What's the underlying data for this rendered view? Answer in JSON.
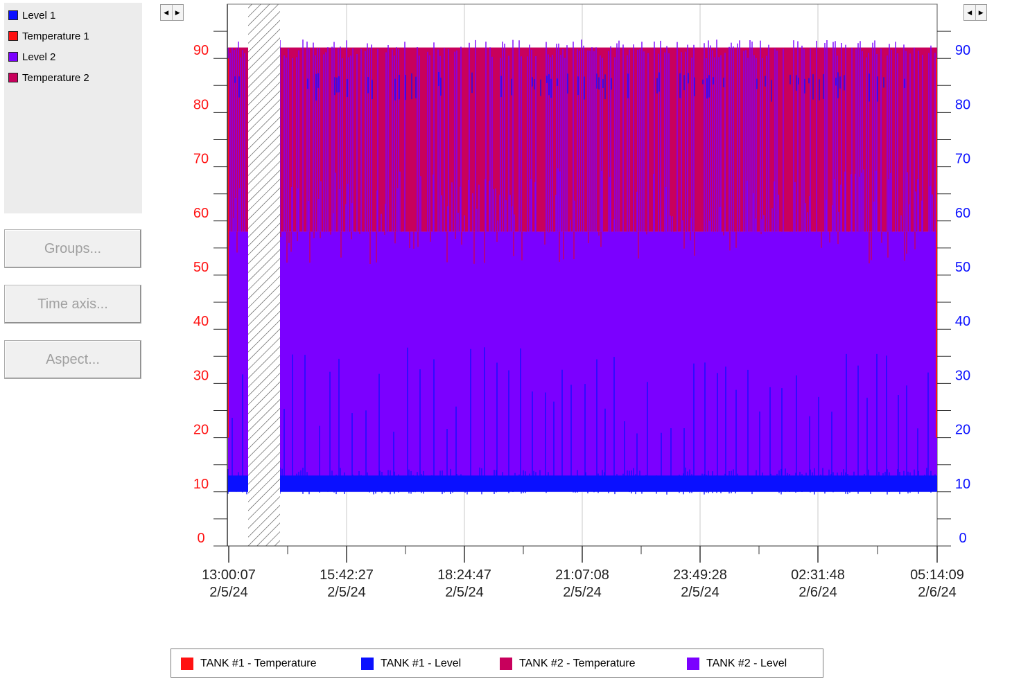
{
  "side_legend": [
    {
      "label": "Level 1",
      "color": "#0a10ff"
    },
    {
      "label": "Temperature 1",
      "color": "#ff1212"
    },
    {
      "label": "Level 2",
      "color": "#7b00ff"
    },
    {
      "label": "Temperature 2",
      "color": "#c8005c"
    }
  ],
  "buttons": {
    "groups": "Groups...",
    "time_axis": "Time axis...",
    "aspect": "Aspect..."
  },
  "scroll_icons": [
    "scroll-left-icon",
    "scroll-right-icon"
  ],
  "bottom_legend": [
    {
      "label": "TANK #1 - Temperature",
      "color": "#ff1212"
    },
    {
      "label": "TANK #1 - Level",
      "color": "#0a10ff"
    },
    {
      "label": "TANK #2 - Temperature",
      "color": "#c8005c"
    },
    {
      "label": "TANK #2 - Level",
      "color": "#7b00ff"
    }
  ],
  "chart_data": {
    "type": "area",
    "title": "",
    "left_axis": {
      "ticks": [
        0,
        10,
        20,
        30,
        40,
        50,
        60,
        70,
        80,
        90
      ],
      "color": "#ff1212",
      "range": [
        0,
        100
      ]
    },
    "right_axis": {
      "ticks": [
        0,
        10,
        20,
        30,
        40,
        50,
        60,
        70,
        80,
        90
      ],
      "color": "#0a10ff",
      "range": [
        0,
        100
      ]
    },
    "x_ticks": [
      {
        "time": "13:00:07",
        "date": "2/5/24"
      },
      {
        "time": "15:42:27",
        "date": "2/5/24"
      },
      {
        "time": "18:24:47",
        "date": "2/5/24"
      },
      {
        "time": "21:07:08",
        "date": "2/5/24"
      },
      {
        "time": "23:49:28",
        "date": "2/5/24"
      },
      {
        "time": "02:31:48",
        "date": "2/6/24"
      },
      {
        "time": "05:14:09",
        "date": "2/6/24"
      }
    ],
    "no_data_gap": [
      "13:18",
      "13:45"
    ],
    "series": [
      {
        "name": "Temperature 2",
        "color": "#c8005c",
        "band_low": 58,
        "band_high": 92
      },
      {
        "name": "Level 2",
        "color": "#7b00ff",
        "band_low": 12,
        "band_high": 58,
        "peak": 93
      },
      {
        "name": "Level 1",
        "color": "#0a10ff",
        "band_low": 10,
        "band_high": 13,
        "peak": 86
      },
      {
        "name": "Temperature 1",
        "color": "#ff1212",
        "band_low": 20,
        "band_high": 90
      }
    ],
    "grid": true
  }
}
